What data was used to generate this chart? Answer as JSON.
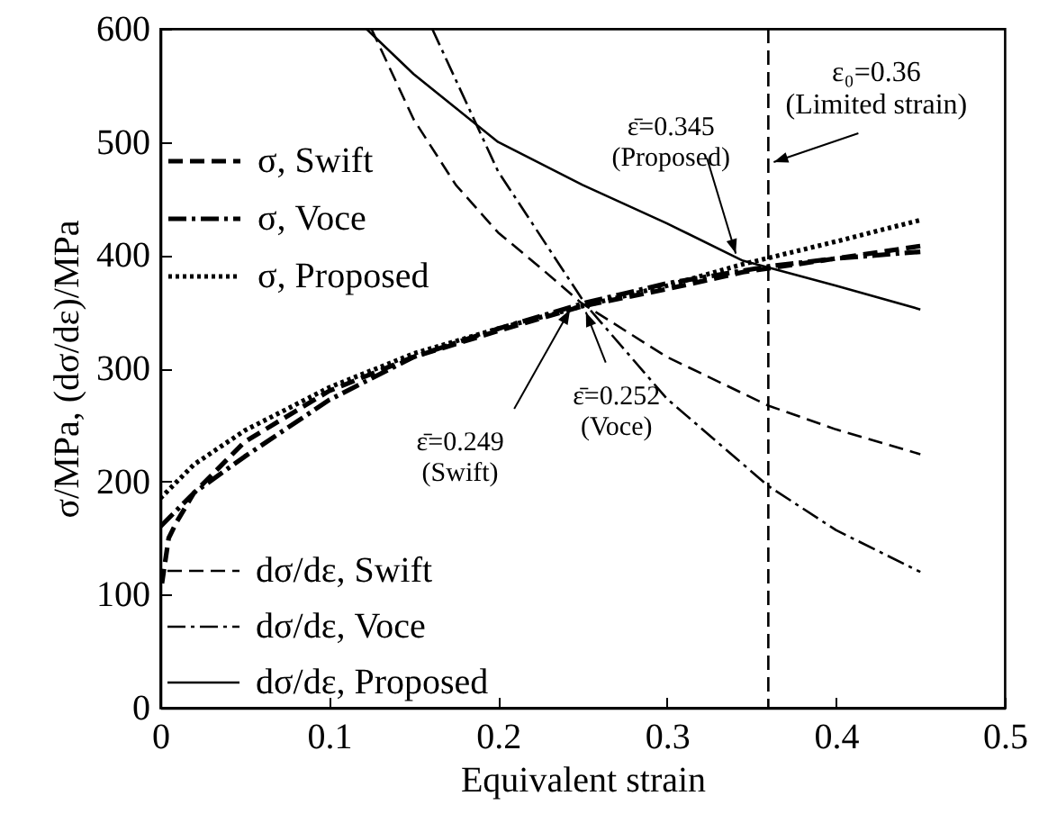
{
  "chart_data": {
    "type": "line",
    "xlabel": "Equivalent strain",
    "ylabel": "σ/MPa, (dσ/dε)/MPa",
    "xlim": [
      0,
      0.5
    ],
    "xticks": [
      0,
      0.1,
      0.2,
      0.3,
      0.4,
      0.5
    ],
    "ylim": [
      0,
      600
    ],
    "yticks": [
      0,
      100,
      200,
      300,
      400,
      500,
      600
    ],
    "grid": false,
    "legend": "left",
    "marker": "none",
    "series": [
      {
        "name": "σ, Swift",
        "color": "#000000",
        "line_style": "dashed",
        "x": [
          0.001,
          0.005,
          0.01,
          0.02,
          0.05,
          0.1,
          0.15,
          0.2,
          0.25,
          0.3,
          0.345,
          0.4,
          0.45
        ],
        "values": [
          110,
          150,
          165,
          190,
          235,
          280,
          310,
          333,
          355,
          370,
          385,
          397,
          408
        ]
      },
      {
        "name": "σ, Voce",
        "color": "#000000",
        "line_style": "dashdot",
        "x": [
          0,
          0.01,
          0.02,
          0.05,
          0.1,
          0.15,
          0.2,
          0.252,
          0.3,
          0.36,
          0.4,
          0.45
        ],
        "values": [
          160,
          175,
          190,
          222,
          272,
          310,
          335,
          358,
          375,
          390,
          397,
          403
        ]
      },
      {
        "name": "σ, Proposed",
        "color": "#000000",
        "line_style": "dotted",
        "x": [
          0,
          0.01,
          0.02,
          0.05,
          0.1,
          0.15,
          0.2,
          0.25,
          0.3,
          0.345,
          0.4,
          0.45
        ],
        "values": [
          185,
          200,
          215,
          245,
          283,
          313,
          335,
          355,
          373,
          392,
          412,
          431
        ]
      },
      {
        "name": "dσ/dε, Swift",
        "color": "#000000",
        "line_style": "dashed",
        "x": [
          0.125,
          0.15,
          0.175,
          0.2,
          0.225,
          0.249,
          0.3,
          0.36,
          0.4,
          0.45
        ],
        "values": [
          600,
          520,
          462,
          420,
          389,
          358,
          310,
          267,
          246,
          224
        ]
      },
      {
        "name": "dσ/dε, Voce",
        "color": "#000000",
        "line_style": "dashdot",
        "x": [
          0.161,
          0.2,
          0.252,
          0.3,
          0.36,
          0.4,
          0.45
        ],
        "values": [
          600,
          474,
          356,
          273,
          196,
          157,
          120
        ]
      },
      {
        "name": "dσ/dε, Proposed",
        "color": "#000000",
        "line_style": "solid",
        "x": [
          0.122,
          0.15,
          0.175,
          0.2,
          0.25,
          0.3,
          0.345,
          0.4,
          0.45
        ],
        "values": [
          600,
          560,
          530,
          500,
          462,
          428,
          395,
          373,
          352
        ]
      }
    ],
    "ref_lines": [
      {
        "axis": "x",
        "value": 0.36,
        "label": "ε₀=0.36\n(Limited strain)",
        "line_style": "dashed",
        "color": "#000000"
      }
    ],
    "annotations": [
      {
        "text": "ε̄=0.249\n(Swift)",
        "x": 0.249,
        "y": 358
      },
      {
        "text": "ε̄=0.252\n(Voce)",
        "x": 0.252,
        "y": 356
      },
      {
        "text": "ε̄=0.345\n(Proposed)",
        "x": 0.345,
        "y": 395
      }
    ]
  }
}
